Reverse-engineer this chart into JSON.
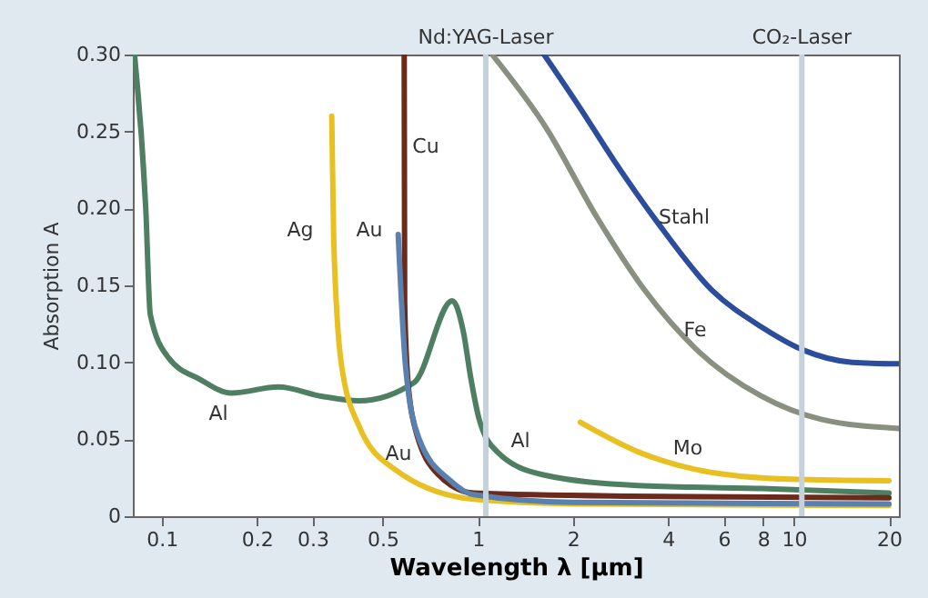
{
  "chart_data": {
    "type": "line",
    "xlabel": "Wavelength λ [µm]",
    "ylabel": "Absorption A",
    "log": "x",
    "grid": false,
    "legend": false,
    "marker": "none",
    "line_style": "solid",
    "xlim": [
      0.081,
      21.5
    ],
    "ylim": [
      0,
      0.3
    ],
    "xticks": [
      0.1,
      0.2,
      0.3,
      0.5,
      1,
      2,
      4,
      6,
      8,
      10,
      20
    ],
    "yticks": [
      0,
      0.05,
      {
        "value": 0.1,
        "label": "0.10"
      },
      0.15,
      {
        "value": 0.2,
        "label": "0.20"
      },
      0.25,
      {
        "value": 0.3,
        "label": "0.30"
      }
    ],
    "series": [
      {
        "color": "#4f7f62",
        "x": [
          0.082,
          0.089,
          0.092,
          0.105,
          0.132,
          0.166,
          0.234,
          0.32,
          0.42,
          0.63,
          0.83,
          0.9,
          0.95,
          1.01,
          1.15,
          1.6,
          3.2,
          7.9,
          20
        ],
        "values": [
          0.3,
          0.2,
          0.131,
          0.103,
          0.089,
          0.08,
          0.084,
          0.078,
          0.075,
          0.087,
          0.14,
          0.12,
          0.09,
          0.063,
          0.042,
          0.027,
          0.02,
          0.018,
          0.015
        ]
      },
      {
        "color": "#e8c022",
        "x": [
          0.345,
          0.35,
          0.37,
          0.42,
          0.55,
          0.97,
          2,
          20
        ],
        "values": [
          0.26,
          0.18,
          0.099,
          0.059,
          0.03,
          0.011,
          0.008,
          0.007
        ]
      },
      {
        "color": "#6b2a1a",
        "x": [
          0.585,
          0.587,
          0.6,
          0.63,
          0.75,
          0.97,
          3,
          20
        ],
        "values": [
          0.3,
          0.139,
          0.09,
          0.059,
          0.027,
          0.015,
          0.013,
          0.012
        ]
      },
      {
        "color": "#5a80b0",
        "x": [
          0.56,
          0.59,
          0.65,
          0.82,
          0.97,
          2,
          20
        ],
        "values": [
          0.183,
          0.099,
          0.051,
          0.023,
          0.014,
          0.009,
          0.008
        ]
      },
      {
        "color": "#2c4c9c",
        "x": [
          1.62,
          2.08,
          2.7,
          3.67,
          5.5,
          7.9,
          10.7,
          15.3,
          21.5
        ],
        "values": [
          0.3,
          0.267,
          0.231,
          0.192,
          0.147,
          0.123,
          0.108,
          0.1,
          0.099
        ]
      },
      {
        "color": "#8a9080",
        "x": [
          1.11,
          1.65,
          2.37,
          3.37,
          5,
          7.9,
          12.2,
          21.5
        ],
        "values": [
          0.3,
          0.252,
          0.195,
          0.147,
          0.107,
          0.078,
          0.063,
          0.057
        ]
      },
      {
        "color": "#e8c022",
        "x": [
          2.11,
          3.2,
          5,
          9.8,
          20
        ],
        "values": [
          0.061,
          0.042,
          0.03,
          0.024,
          0.023
        ]
      }
    ],
    "ref_lines": [
      {
        "axis": "x",
        "value": 1.06,
        "label": "Nd:YAG-Laser",
        "color": "#c5d2dc"
      },
      {
        "axis": "x",
        "value": 10.6,
        "label": "CO₂-Laser",
        "color": "#c5d2dc"
      }
    ],
    "annotations": [
      "Ag",
      "Au",
      "Cu",
      "Al",
      "Au",
      "Al",
      "Stahl",
      "Fe",
      "Mo"
    ]
  }
}
